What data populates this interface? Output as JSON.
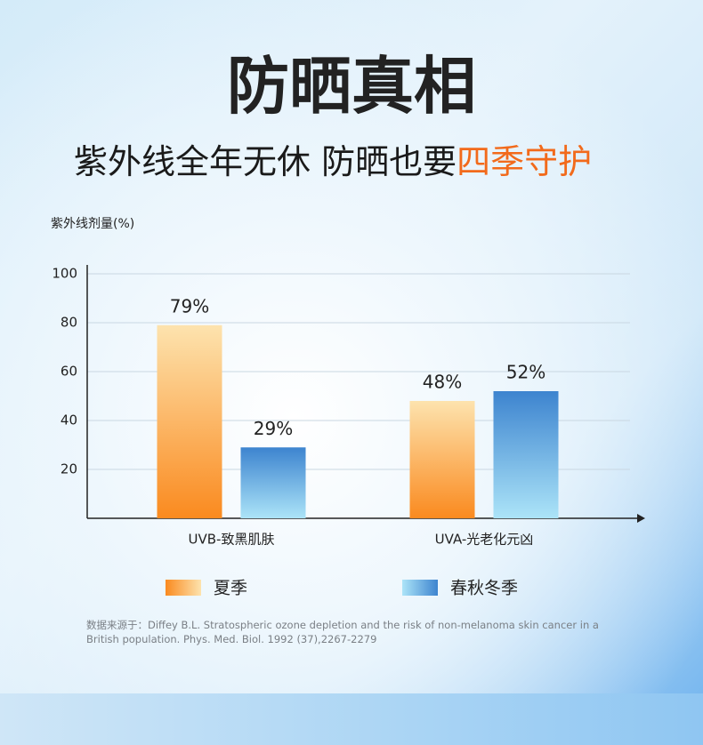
{
  "chart_data": {
    "type": "bar",
    "title": "防晒真相",
    "subtitle": "紫外线全年无休 防晒也要",
    "subtitle_highlight": "四季守护",
    "y_label": "紫外线剂量(%)",
    "categories": [
      "UVB-致黑肌肤",
      "UVA-光老化元凶"
    ],
    "series": [
      {
        "name": "夏季",
        "colors": [
          "#fde3ae",
          "#fa8a1f"
        ],
        "values": [
          79,
          48
        ],
        "value_labels": [
          "79%",
          "48%"
        ]
      },
      {
        "name": "春秋冬季",
        "colors": [
          "#3d84cf",
          "#ace4f8"
        ],
        "values": [
          29,
          52
        ],
        "value_labels": [
          "29%",
          "52%"
        ]
      }
    ],
    "ylim": [
      0,
      100
    ],
    "yticks": [
      20,
      40,
      60,
      80,
      100
    ],
    "grid": true,
    "source": "数据来源于：Diffey B.L. Stratospheric ozone depletion and the risk of non-melanoma skin cancer in a British population. Phys. Med. Biol. 1992 (37),2267-2279"
  }
}
